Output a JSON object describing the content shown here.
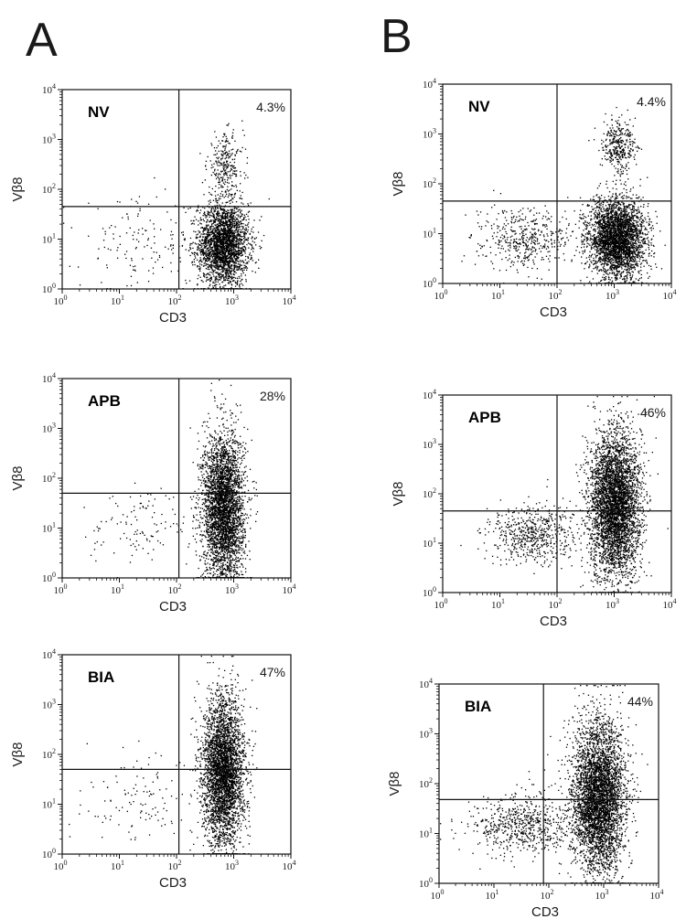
{
  "figure": {
    "panels": [
      "A",
      "B"
    ]
  },
  "chart_data": [
    {
      "type": "scatter",
      "panel": "A",
      "sample": "NV",
      "quadrant_pct": "4.3%",
      "xlabel": "CD3",
      "ylabel": "Vβ8",
      "xscale": "log",
      "yscale": "log",
      "xlim": [
        1,
        10000
      ],
      "ylim": [
        1,
        10000
      ],
      "x_ticks": [
        "10^0",
        "10^1",
        "10^2",
        "10^3",
        "10^4"
      ],
      "y_ticks": [
        "10^0",
        "10^1",
        "10^2",
        "10^3",
        "10^4"
      ],
      "gate": {
        "x": 110,
        "y": 45
      },
      "populations": [
        {
          "name": "",
          "center": [
            650,
            8
          ],
          "spread": [
            0.22,
            0.42
          ],
          "n": 2600
        },
        {
          "name": "",
          "center": [
            700,
            300
          ],
          "spread": [
            0.16,
            0.32
          ],
          "n": 280
        },
        {
          "name": "",
          "center": [
            25,
            8
          ],
          "spread": [
            0.55,
            0.45
          ],
          "n": 150
        }
      ]
    },
    {
      "type": "scatter",
      "panel": "A",
      "sample": "APB",
      "quadrant_pct": "28%",
      "xlabel": "CD3",
      "ylabel": "Vβ8",
      "xscale": "log",
      "yscale": "log",
      "xlim": [
        1,
        10000
      ],
      "ylim": [
        1,
        10000
      ],
      "x_ticks": [
        "10^0",
        "10^1",
        "10^2",
        "10^3",
        "10^4"
      ],
      "y_ticks": [
        "10^0",
        "10^1",
        "10^2",
        "10^3",
        "10^4"
      ],
      "gate": {
        "x": 110,
        "y": 50
      },
      "populations": [
        {
          "name": "",
          "center": [
            650,
            25
          ],
          "spread": [
            0.18,
            0.75
          ],
          "n": 3600
        },
        {
          "name": "",
          "center": [
            25,
            12
          ],
          "spread": [
            0.5,
            0.4
          ],
          "n": 120
        }
      ]
    },
    {
      "type": "scatter",
      "panel": "A",
      "sample": "BIA",
      "quadrant_pct": "47%",
      "xlabel": "CD3",
      "ylabel": "Vβ8",
      "xscale": "log",
      "yscale": "log",
      "xlim": [
        1,
        10000
      ],
      "ylim": [
        1,
        10000
      ],
      "x_ticks": [
        "10^0",
        "10^1",
        "10^2",
        "10^3",
        "10^4"
      ],
      "y_ticks": [
        "10^0",
        "10^1",
        "10^2",
        "10^3",
        "10^4"
      ],
      "gate": {
        "x": 110,
        "y": 50
      },
      "populations": [
        {
          "name": "",
          "center": [
            650,
            45
          ],
          "spread": [
            0.18,
            0.75
          ],
          "n": 3600
        },
        {
          "name": "",
          "center": [
            25,
            12
          ],
          "spread": [
            0.5,
            0.4
          ],
          "n": 120
        }
      ]
    },
    {
      "type": "scatter",
      "panel": "B",
      "sample": "NV",
      "quadrant_pct": "4.4%",
      "xlabel": "CD3",
      "ylabel": "Vβ8",
      "xscale": "log",
      "yscale": "log",
      "xlim": [
        1,
        10000
      ],
      "ylim": [
        1,
        10000
      ],
      "x_ticks": [
        "10^0",
        "10^1",
        "10^2",
        "10^3",
        "10^4"
      ],
      "y_ticks": [
        "10^0",
        "10^1",
        "10^2",
        "10^3",
        "10^4"
      ],
      "gate": {
        "x": 100,
        "y": 45
      },
      "populations": [
        {
          "name": "",
          "center": [
            1100,
            8
          ],
          "spread": [
            0.25,
            0.4
          ],
          "n": 3200
        },
        {
          "name": "",
          "center": [
            1200,
            600
          ],
          "spread": [
            0.15,
            0.25
          ],
          "n": 350
        },
        {
          "name": "",
          "center": [
            25,
            8
          ],
          "spread": [
            0.4,
            0.3
          ],
          "n": 450
        }
      ]
    },
    {
      "type": "scatter",
      "panel": "B",
      "sample": "APB",
      "quadrant_pct": "46%",
      "xlabel": "CD3",
      "ylabel": "Vβ8",
      "xscale": "log",
      "yscale": "log",
      "xlim": [
        1,
        10000
      ],
      "ylim": [
        1,
        10000
      ],
      "x_ticks": [
        "10^0",
        "10^1",
        "10^2",
        "10^3",
        "10^4"
      ],
      "y_ticks": [
        "10^0",
        "10^1",
        "10^2",
        "10^3",
        "10^4"
      ],
      "gate": {
        "x": 100,
        "y": 45
      },
      "populations": [
        {
          "name": "",
          "center": [
            1000,
            60
          ],
          "spread": [
            0.22,
            0.75
          ],
          "n": 4200
        },
        {
          "name": "",
          "center": [
            40,
            15
          ],
          "spread": [
            0.4,
            0.3
          ],
          "n": 600
        }
      ]
    },
    {
      "type": "scatter",
      "panel": "B",
      "sample": "BIA",
      "quadrant_pct": "44%",
      "xlabel": "CD3",
      "ylabel": "Vβ8",
      "xscale": "log",
      "yscale": "log",
      "xlim": [
        1,
        10000
      ],
      "ylim": [
        1,
        10000
      ],
      "x_ticks": [
        "10^0",
        "10^1",
        "10^2",
        "10^3",
        "10^4"
      ],
      "y_ticks": [
        "10^0",
        "10^1",
        "10^2",
        "10^3",
        "10^4"
      ],
      "gate": {
        "x": 80,
        "y": 48
      },
      "populations": [
        {
          "name": "",
          "center": [
            800,
            55
          ],
          "spread": [
            0.24,
            0.75
          ],
          "n": 4200
        },
        {
          "name": "",
          "center": [
            35,
            15
          ],
          "spread": [
            0.45,
            0.3
          ],
          "n": 650
        }
      ]
    }
  ]
}
